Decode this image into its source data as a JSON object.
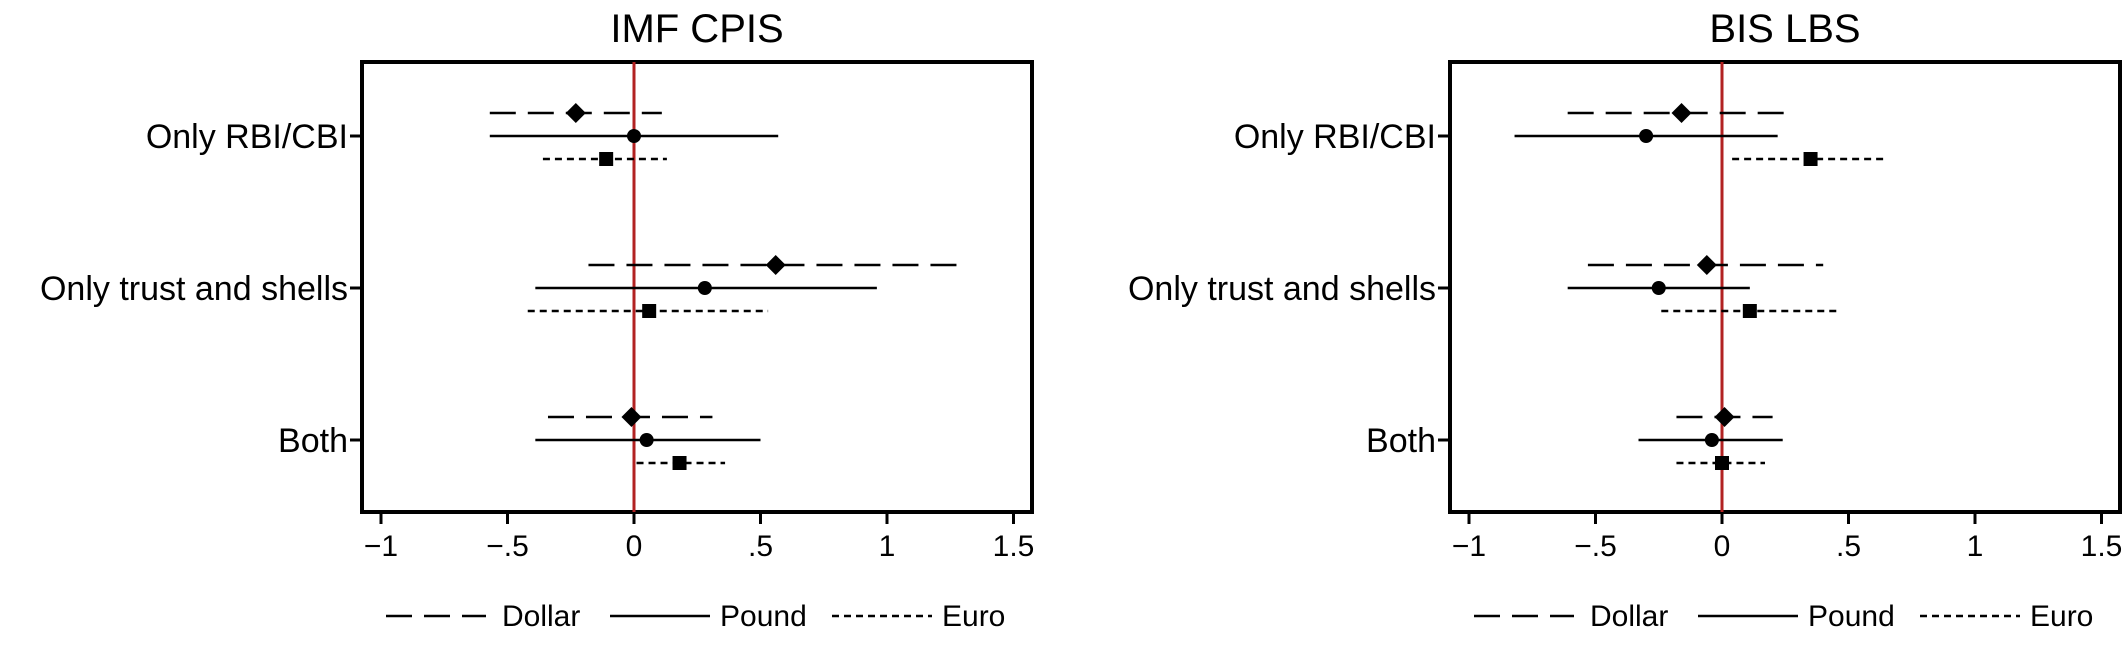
{
  "chart_data": [
    {
      "type": "scatter",
      "subtype": "coefficient-plot-with-confidence-intervals",
      "title": "IMF CPIS",
      "categories": [
        "Only RBI/CBI",
        "Only trust and shells",
        "Both"
      ],
      "xlim": [
        -1.1,
        1.55
      ],
      "xticks": [
        -1,
        -0.5,
        0,
        0.5,
        1,
        1.5
      ],
      "xtick_labels": [
        "−1",
        "−.5",
        "0",
        ".5",
        "1",
        "1.5"
      ],
      "reference_line": {
        "x": 0,
        "color": "#b22222"
      },
      "grid": false,
      "legend_position": "bottom",
      "series": [
        {
          "name": "Dollar",
          "marker": "diamond",
          "line": "long-dash",
          "points": [
            {
              "category": "Only RBI/CBI",
              "estimate": -0.23,
              "ci": [
                -0.57,
                0.11
              ]
            },
            {
              "category": "Only trust and shells",
              "estimate": 0.56,
              "ci": [
                -0.18,
                1.31
              ]
            },
            {
              "category": "Both",
              "estimate": -0.01,
              "ci": [
                -0.34,
                0.31
              ]
            }
          ]
        },
        {
          "name": "Pound",
          "marker": "circle",
          "line": "solid",
          "points": [
            {
              "category": "Only RBI/CBI",
              "estimate": 0.0,
              "ci": [
                -0.57,
                0.57
              ]
            },
            {
              "category": "Only trust and shells",
              "estimate": 0.28,
              "ci": [
                -0.39,
                0.96
              ]
            },
            {
              "category": "Both",
              "estimate": 0.05,
              "ci": [
                -0.39,
                0.5
              ]
            }
          ]
        },
        {
          "name": "Euro",
          "marker": "square",
          "line": "short-dash",
          "points": [
            {
              "category": "Only RBI/CBI",
              "estimate": -0.11,
              "ci": [
                -0.36,
                0.13
              ]
            },
            {
              "category": "Only trust and shells",
              "estimate": 0.06,
              "ci": [
                -0.42,
                0.53
              ]
            },
            {
              "category": "Both",
              "estimate": 0.18,
              "ci": [
                0.01,
                0.36
              ]
            }
          ]
        }
      ]
    },
    {
      "type": "scatter",
      "subtype": "coefficient-plot-with-confidence-intervals",
      "title": "BIS LBS",
      "categories": [
        "Only RBI/CBI",
        "Only trust and shells",
        "Both"
      ],
      "xlim": [
        -1.1,
        1.55
      ],
      "xticks": [
        -1,
        -0.5,
        0,
        0.5,
        1,
        1.5
      ],
      "xtick_labels": [
        "−1",
        "−.5",
        "0",
        ".5",
        "1",
        "1.5"
      ],
      "reference_line": {
        "x": 0,
        "color": "#b22222"
      },
      "grid": false,
      "legend_position": "bottom",
      "series": [
        {
          "name": "Dollar",
          "marker": "diamond",
          "line": "long-dash",
          "points": [
            {
              "category": "Only RBI/CBI",
              "estimate": -0.16,
              "ci": [
                -0.61,
                0.28
              ]
            },
            {
              "category": "Only trust and shells",
              "estimate": -0.06,
              "ci": [
                -0.53,
                0.4
              ]
            },
            {
              "category": "Both",
              "estimate": 0.01,
              "ci": [
                -0.18,
                0.2
              ]
            }
          ]
        },
        {
          "name": "Pound",
          "marker": "circle",
          "line": "solid",
          "points": [
            {
              "category": "Only RBI/CBI",
              "estimate": -0.3,
              "ci": [
                -0.82,
                0.22
              ]
            },
            {
              "category": "Only trust and shells",
              "estimate": -0.25,
              "ci": [
                -0.61,
                0.11
              ]
            },
            {
              "category": "Both",
              "estimate": -0.04,
              "ci": [
                -0.33,
                0.24
              ]
            }
          ]
        },
        {
          "name": "Euro",
          "marker": "square",
          "line": "short-dash",
          "points": [
            {
              "category": "Only RBI/CBI",
              "estimate": 0.35,
              "ci": [
                0.04,
                0.65
              ]
            },
            {
              "category": "Only trust and shells",
              "estimate": 0.11,
              "ci": [
                -0.24,
                0.46
              ]
            },
            {
              "category": "Both",
              "estimate": 0.0,
              "ci": [
                -0.18,
                0.17
              ]
            }
          ]
        }
      ]
    }
  ],
  "legend": {
    "items": [
      {
        "label": "Dollar",
        "line": "long-dash"
      },
      {
        "label": "Pound",
        "line": "solid"
      },
      {
        "label": "Euro",
        "line": "short-dash"
      }
    ]
  }
}
